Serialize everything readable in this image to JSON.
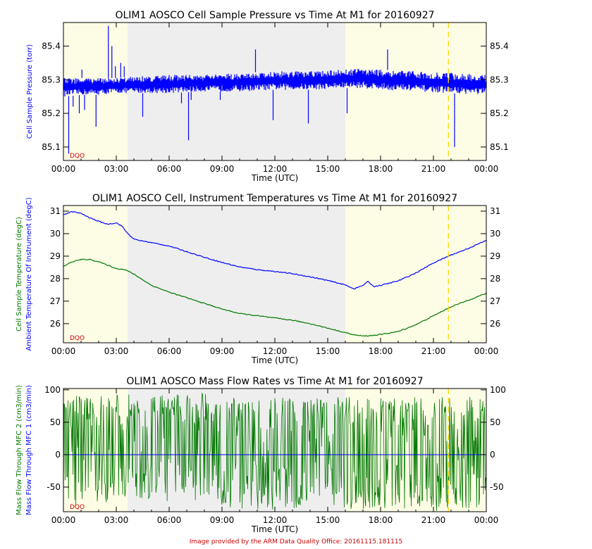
{
  "footer": "Image provided by the ARM Data Quality Office: 20161115.181115",
  "colors": {
    "plot_bg": "#fdfde6",
    "night_shade": "#eeeeee",
    "series_blue": "#0000ff",
    "series_green": "#007700",
    "marker_line": "#ffd400",
    "dqo_text": "#cc0000",
    "frame": "#000000"
  },
  "chart_data": [
    {
      "type": "line",
      "title": "OLIM1 AOSCO Cell Sample Pressure vs Time At M1 for 20160927",
      "xlabel": "Time (UTC)",
      "ylabel_lines": [
        {
          "text": "Cell Sample Pressure (torr)",
          "color": "#0000ff"
        }
      ],
      "x_ticks": [
        "00:00",
        "03:00",
        "06:00",
        "09:00",
        "12:00",
        "15:00",
        "18:00",
        "21:00",
        "00:00"
      ],
      "xlim_hours": [
        0,
        24
      ],
      "ylim": [
        85.06,
        85.47
      ],
      "y_ticks": [
        85.1,
        85.2,
        85.3,
        85.4
      ],
      "y_tick_labels": [
        "85.1",
        "85.2",
        "85.3",
        "85.4"
      ],
      "shaded_interval_hours": [
        3.65,
        16.0
      ],
      "marker_line_hour": 21.85,
      "annotation": "DQO",
      "series": [
        {
          "color": "#0000ff",
          "style": "band",
          "x": [
            0,
            1,
            2,
            3,
            4,
            5,
            6,
            8,
            10,
            12,
            14,
            16,
            17,
            18,
            20,
            22,
            24
          ],
          "low": [
            85.25,
            85.255,
            85.255,
            85.26,
            85.26,
            85.26,
            85.26,
            85.265,
            85.265,
            85.27,
            85.27,
            85.275,
            85.275,
            85.27,
            85.265,
            85.26,
            85.255
          ],
          "high": [
            85.305,
            85.305,
            85.305,
            85.305,
            85.31,
            85.31,
            85.315,
            85.315,
            85.32,
            85.325,
            85.325,
            85.33,
            85.335,
            85.33,
            85.325,
            85.32,
            85.315
          ],
          "spikes_hour": [
            0.3,
            0.55,
            0.9,
            1.05,
            1.2,
            1.85,
            2.55,
            2.75,
            2.95,
            3.25,
            3.45,
            4.5,
            6.7,
            7.1,
            7.25,
            8.9,
            10.9,
            11.9,
            13.9,
            16.1,
            18.4,
            22.2
          ],
          "spikes_value": [
            85.08,
            85.22,
            85.2,
            85.33,
            85.21,
            85.16,
            85.46,
            85.4,
            85.34,
            85.35,
            85.34,
            85.19,
            85.23,
            85.12,
            85.24,
            85.24,
            85.39,
            85.18,
            85.17,
            85.2,
            85.39,
            85.1
          ]
        }
      ]
    },
    {
      "type": "line",
      "title": "OLIM1 AOSCO Cell, Instrument Temperatures vs Time At M1 for 20160927",
      "xlabel": "Time (UTC)",
      "ylabel_lines": [
        {
          "text": "Cell Sample Temperature (degC)",
          "color": "#007700"
        },
        {
          "text": "Ambient Temperature Of Instrument (degC)",
          "color": "#0000ff"
        }
      ],
      "x_ticks": [
        "00:00",
        "03:00",
        "06:00",
        "09:00",
        "12:00",
        "15:00",
        "18:00",
        "21:00",
        "00:00"
      ],
      "xlim_hours": [
        0,
        24
      ],
      "ylim": [
        25.15,
        31.25
      ],
      "y_ticks": [
        26,
        27,
        28,
        29,
        30,
        31
      ],
      "y_tick_labels": [
        "26",
        "27",
        "28",
        "29",
        "30",
        "31"
      ],
      "shaded_interval_hours": [
        3.65,
        16.0
      ],
      "marker_line_hour": 21.85,
      "annotation": "DQO",
      "series": [
        {
          "color": "#0000ff",
          "style": "line",
          "x": [
            0,
            0.5,
            1,
            1.5,
            2,
            2.5,
            3,
            3.3,
            3.6,
            4,
            5,
            6,
            7,
            8,
            9,
            10,
            11,
            12,
            13,
            14,
            15,
            16,
            16.5,
            17,
            17.3,
            17.6,
            18,
            19,
            20,
            21,
            22,
            23,
            24
          ],
          "y": [
            30.85,
            30.98,
            30.9,
            30.7,
            30.55,
            30.42,
            30.48,
            30.35,
            30.05,
            29.75,
            29.6,
            29.45,
            29.2,
            28.95,
            28.72,
            28.52,
            28.4,
            28.32,
            28.22,
            28.08,
            27.92,
            27.72,
            27.55,
            27.7,
            27.88,
            27.65,
            27.7,
            27.9,
            28.25,
            28.7,
            29.05,
            29.35,
            29.7
          ]
        },
        {
          "color": "#007700",
          "style": "line",
          "x": [
            0,
            0.5,
            1,
            1.5,
            2,
            2.5,
            3,
            3.5,
            4,
            5,
            6,
            7,
            8,
            9,
            10,
            11,
            12,
            13,
            14,
            15,
            16,
            16.5,
            17,
            17.5,
            18,
            19,
            20,
            21,
            22,
            23,
            24
          ],
          "y": [
            28.55,
            28.75,
            28.85,
            28.85,
            28.75,
            28.6,
            28.45,
            28.4,
            28.2,
            27.7,
            27.4,
            27.15,
            26.9,
            26.65,
            26.45,
            26.35,
            26.25,
            26.15,
            26.0,
            25.8,
            25.6,
            25.5,
            25.45,
            25.47,
            25.52,
            25.65,
            25.95,
            26.35,
            26.75,
            27.05,
            27.35
          ]
        }
      ]
    },
    {
      "type": "line",
      "title": "OLIM1 AOSCO Mass Flow Rates vs Time At M1 for 20160927",
      "xlabel": "Time (UTC)",
      "ylabel_lines": [
        {
          "text": "Mass Flow Through MFC 2 (cm3/min)",
          "color": "#007700"
        },
        {
          "text": "Mass Flow Through MFC 1 (cm3/min)",
          "color": "#0000ff"
        }
      ],
      "x_ticks": [
        "00:00",
        "03:00",
        "06:00",
        "09:00",
        "12:00",
        "15:00",
        "18:00",
        "21:00",
        "00:00"
      ],
      "xlim_hours": [
        0,
        24
      ],
      "ylim": [
        -88,
        102
      ],
      "y_ticks": [
        -50,
        0,
        50,
        100
      ],
      "y_tick_labels": [
        "-50",
        "0",
        "50",
        "100"
      ],
      "shaded_interval_hours": [
        3.65,
        16.0
      ],
      "marker_line_hour": 21.85,
      "annotation": "DQO",
      "series": [
        {
          "color": "#007700",
          "style": "noise",
          "x": [
            0,
            2,
            3.7,
            6,
            8,
            8.7,
            10,
            12,
            14,
            16,
            18,
            20,
            22,
            24
          ],
          "center": [
            25,
            25,
            28,
            28,
            30,
            18,
            12,
            12,
            12,
            10,
            10,
            10,
            8,
            8
          ],
          "high": [
            90,
            92,
            95,
            93,
            95,
            90,
            88,
            88,
            88,
            90,
            88,
            90,
            90,
            90
          ],
          "low": [
            -80,
            -75,
            -70,
            -72,
            -70,
            -85,
            -85,
            -85,
            -85,
            -85,
            -85,
            -85,
            -88,
            -80
          ]
        },
        {
          "color": "#0000ff",
          "style": "flat",
          "x": [
            0,
            24
          ],
          "y": [
            0,
            0
          ]
        }
      ]
    }
  ]
}
